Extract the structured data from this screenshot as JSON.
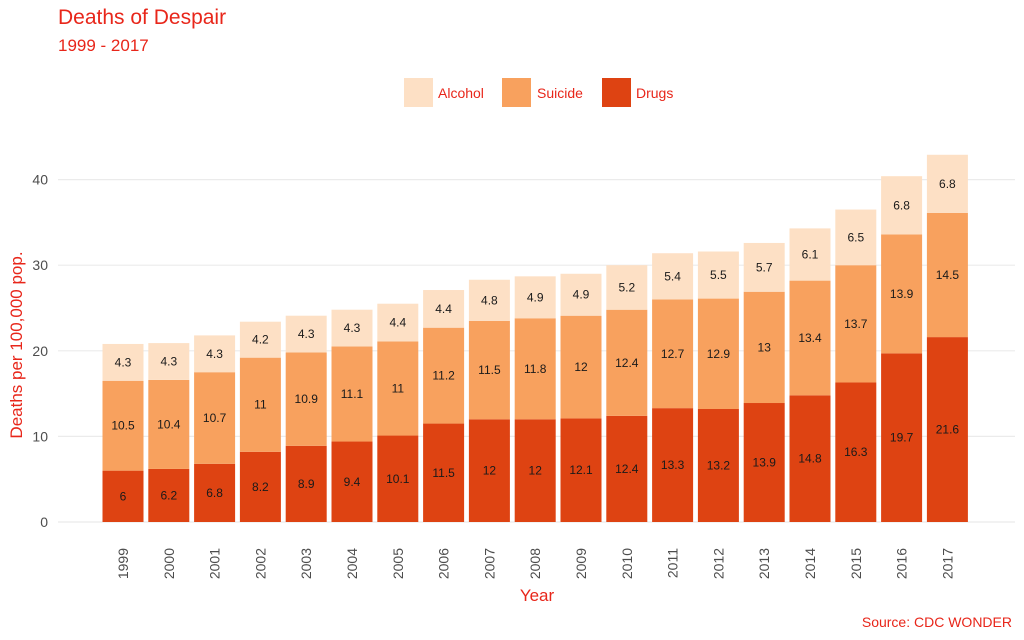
{
  "title": "Deaths of Despair",
  "subtitle": "1999 - 2017",
  "caption": "Source: CDC WONDER",
  "chart_data": {
    "type": "bar",
    "stacked": true,
    "xlabel": "Year",
    "ylabel": "Deaths per 100,000 pop.",
    "ylim": [
      0,
      45
    ],
    "yticks": [
      0,
      10,
      20,
      30,
      40
    ],
    "grid": true,
    "legend_position": "top",
    "categories": [
      "1999",
      "2000",
      "2001",
      "2002",
      "2003",
      "2004",
      "2005",
      "2006",
      "2007",
      "2008",
      "2009",
      "2010",
      "2011",
      "2012",
      "2013",
      "2014",
      "2015",
      "2016",
      "2017"
    ],
    "series": [
      {
        "name": "Drugs",
        "color": "#de4312",
        "values": [
          6,
          6.2,
          6.8,
          8.2,
          8.9,
          9.4,
          10.1,
          11.5,
          12,
          12,
          12.1,
          12.4,
          13.3,
          13.2,
          13.9,
          14.8,
          16.3,
          19.7,
          21.6
        ]
      },
      {
        "name": "Suicide",
        "color": "#f8a15e",
        "values": [
          10.5,
          10.4,
          10.7,
          11,
          10.9,
          11.1,
          11,
          11.2,
          11.5,
          11.8,
          12,
          12.4,
          12.7,
          12.9,
          13,
          13.4,
          13.7,
          13.9,
          14.5
        ]
      },
      {
        "name": "Alcohol",
        "color": "#fde0c5",
        "values": [
          4.3,
          4.3,
          4.3,
          4.2,
          4.3,
          4.3,
          4.4,
          4.4,
          4.8,
          4.9,
          4.9,
          5.2,
          5.4,
          5.5,
          5.7,
          6.1,
          6.5,
          6.8,
          6.8
        ]
      }
    ],
    "legend_order": [
      "Alcohol",
      "Suicide",
      "Drugs"
    ]
  }
}
